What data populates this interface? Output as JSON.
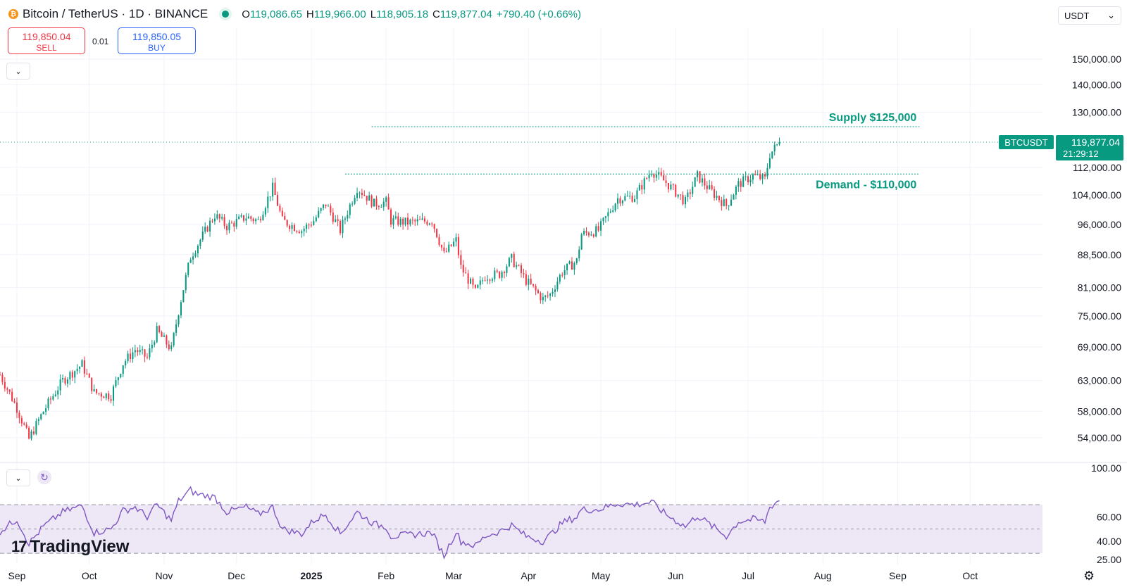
{
  "header": {
    "symbol_title": "Bitcoin / TetherUS · 1D · BINANCE",
    "coin_icon_glyph": "₿",
    "ohlc": {
      "o_label": "O",
      "o_value": "119,086.65",
      "h_label": "H",
      "h_value": "119,966.00",
      "l_label": "L",
      "l_value": "118,905.18",
      "c_label": "C",
      "c_value": "119,877.04",
      "change": "+790.40 (+0.66%)"
    }
  },
  "trade": {
    "sell_price": "119,850.04",
    "sell_label": "SELL",
    "spread": "0.01",
    "buy_price": "119,850.05",
    "buy_label": "BUY"
  },
  "currency_selector": {
    "value": "USDT"
  },
  "branding": {
    "name": "TradingView"
  },
  "colors": {
    "up": "#089981",
    "down": "#f23645",
    "rsi": "#7e57c2",
    "rsi_band": "#ede7f6",
    "grid": "#f0f3fa"
  },
  "chart_data": [
    {
      "type": "candlestick",
      "symbol": "BTCUSDT",
      "interval": "1D",
      "y_scale": "log",
      "ylim": [
        51000,
        160000
      ],
      "y_ticks": [
        {
          "value": 150000,
          "label": "150,000.00"
        },
        {
          "value": 140000,
          "label": "140,000.00"
        },
        {
          "value": 130000,
          "label": "130,000.00"
        },
        {
          "value": 112000,
          "label": "112,000.00"
        },
        {
          "value": 104000,
          "label": "104,000.00"
        },
        {
          "value": 96000,
          "label": "96,000.00"
        },
        {
          "value": 88500,
          "label": "88,500.00"
        },
        {
          "value": 81000,
          "label": "81,000.00"
        },
        {
          "value": 75000,
          "label": "75,000.00"
        },
        {
          "value": 69000,
          "label": "69,000.00"
        },
        {
          "value": 63000,
          "label": "63,000.00"
        },
        {
          "value": 58000,
          "label": "58,000.00"
        },
        {
          "value": 54000,
          "label": "54,000.00"
        }
      ],
      "x_range": [
        "2024-08-25",
        "2025-10-31"
      ],
      "x_ticks": [
        {
          "date": "2024-09-01",
          "label": "Sep"
        },
        {
          "date": "2024-10-01",
          "label": "Oct"
        },
        {
          "date": "2024-11-01",
          "label": "Nov"
        },
        {
          "date": "2024-12-01",
          "label": "Dec"
        },
        {
          "date": "2025-01-01",
          "label": "2025"
        },
        {
          "date": "2025-02-01",
          "label": "Feb"
        },
        {
          "date": "2025-03-01",
          "label": "Mar"
        },
        {
          "date": "2025-04-01",
          "label": "Apr"
        },
        {
          "date": "2025-05-01",
          "label": "May"
        },
        {
          "date": "2025-06-01",
          "label": "Jun"
        },
        {
          "date": "2025-07-01",
          "label": "Jul"
        },
        {
          "date": "2025-08-01",
          "label": "Aug"
        },
        {
          "date": "2025-09-01",
          "label": "Sep"
        },
        {
          "date": "2025-10-01",
          "label": "Oct"
        }
      ],
      "anchors": [
        [
          "2024-08-25",
          64000
        ],
        [
          "2024-09-01",
          58500
        ],
        [
          "2024-09-06",
          53800
        ],
        [
          "2024-09-12",
          58000
        ],
        [
          "2024-09-20",
          63000
        ],
        [
          "2024-09-28",
          65800
        ],
        [
          "2024-10-03",
          61000
        ],
        [
          "2024-10-10",
          60500
        ],
        [
          "2024-10-15",
          66000
        ],
        [
          "2024-10-20",
          68500
        ],
        [
          "2024-10-25",
          67000
        ],
        [
          "2024-10-29",
          72000
        ],
        [
          "2024-11-04",
          68500
        ],
        [
          "2024-11-07",
          76000
        ],
        [
          "2024-11-12",
          88000
        ],
        [
          "2024-11-14",
          90000
        ],
        [
          "2024-11-22",
          98500
        ],
        [
          "2024-11-27",
          95500
        ],
        [
          "2024-12-05",
          98000
        ],
        [
          "2024-12-10",
          97000
        ],
        [
          "2024-12-16",
          106000
        ],
        [
          "2024-12-20",
          97000
        ],
        [
          "2024-12-28",
          94500
        ],
        [
          "2025-01-02",
          97000
        ],
        [
          "2025-01-07",
          101500
        ],
        [
          "2025-01-13",
          94500
        ],
        [
          "2025-01-20",
          106000
        ],
        [
          "2025-01-27",
          101500
        ],
        [
          "2025-02-01",
          102000
        ],
        [
          "2025-02-03",
          97000
        ],
        [
          "2025-02-10",
          96500
        ],
        [
          "2025-02-20",
          97000
        ],
        [
          "2025-02-25",
          88500
        ],
        [
          "2025-03-02",
          92000
        ],
        [
          "2025-03-04",
          85500
        ],
        [
          "2025-03-10",
          80000
        ],
        [
          "2025-03-14",
          83500
        ],
        [
          "2025-03-20",
          84000
        ],
        [
          "2025-03-25",
          87500
        ],
        [
          "2025-03-31",
          82500
        ],
        [
          "2025-04-07",
          78500
        ],
        [
          "2025-04-10",
          79500
        ],
        [
          "2025-04-15",
          84500
        ],
        [
          "2025-04-21",
          87000
        ],
        [
          "2025-04-23",
          93500
        ],
        [
          "2025-04-30",
          94500
        ],
        [
          "2025-05-08",
          103000
        ],
        [
          "2025-05-15",
          103500
        ],
        [
          "2025-05-22",
          111000
        ],
        [
          "2025-05-28",
          107500
        ],
        [
          "2025-06-05",
          102000
        ],
        [
          "2025-06-10",
          109500
        ],
        [
          "2025-06-15",
          105500
        ],
        [
          "2025-06-22",
          101000
        ],
        [
          "2025-06-27",
          107000
        ],
        [
          "2025-07-03",
          109500
        ],
        [
          "2025-07-08",
          108500
        ],
        [
          "2025-07-10",
          116000
        ],
        [
          "2025-07-14",
          119877
        ]
      ],
      "annotations": [
        {
          "label": "Supply $125,000",
          "price": 125000,
          "from": "2025-01-26",
          "to": "2025-09-10",
          "color": "#089981"
        },
        {
          "label": "Demand - $110,000",
          "price": 110000,
          "from": "2025-01-15",
          "to": "2025-09-10",
          "color": "#089981"
        }
      ],
      "last_price": {
        "symbol_label": "BTCUSDT",
        "price_label": "119,877.04",
        "price": 119877.04,
        "countdown": "21:29:12"
      }
    },
    {
      "type": "line",
      "indicator": "RSI",
      "ylim": [
        22,
        103
      ],
      "y_ticks": [
        {
          "value": 100,
          "label": "100.00"
        },
        {
          "value": 60,
          "label": "60.00"
        },
        {
          "value": 40,
          "label": "40.00"
        },
        {
          "value": 25,
          "label": "25.00"
        }
      ],
      "levels": [
        70,
        50,
        30
      ],
      "anchors": [
        [
          "2024-08-25",
          48
        ],
        [
          "2024-09-01",
          58
        ],
        [
          "2024-09-06",
          38
        ],
        [
          "2024-09-12",
          52
        ],
        [
          "2024-09-20",
          64
        ],
        [
          "2024-09-28",
          69
        ],
        [
          "2024-10-03",
          47
        ],
        [
          "2024-10-10",
          50
        ],
        [
          "2024-10-15",
          65
        ],
        [
          "2024-10-20",
          68
        ],
        [
          "2024-10-25",
          60
        ],
        [
          "2024-10-29",
          70
        ],
        [
          "2024-11-04",
          57
        ],
        [
          "2024-11-07",
          73
        ],
        [
          "2024-11-12",
          82
        ],
        [
          "2024-11-14",
          79
        ],
        [
          "2024-11-22",
          76
        ],
        [
          "2024-11-27",
          64
        ],
        [
          "2024-12-05",
          68
        ],
        [
          "2024-12-10",
          62
        ],
        [
          "2024-12-16",
          68
        ],
        [
          "2024-12-20",
          50
        ],
        [
          "2024-12-28",
          46
        ],
        [
          "2025-01-02",
          57
        ],
        [
          "2025-01-07",
          62
        ],
        [
          "2025-01-13",
          46
        ],
        [
          "2025-01-20",
          64
        ],
        [
          "2025-01-27",
          54
        ],
        [
          "2025-02-01",
          52
        ],
        [
          "2025-02-03",
          44
        ],
        [
          "2025-02-10",
          45
        ],
        [
          "2025-02-20",
          47
        ],
        [
          "2025-02-25",
          28
        ],
        [
          "2025-03-02",
          48
        ],
        [
          "2025-03-04",
          40
        ],
        [
          "2025-03-10",
          36
        ],
        [
          "2025-03-14",
          44
        ],
        [
          "2025-03-20",
          48
        ],
        [
          "2025-03-25",
          53
        ],
        [
          "2025-03-31",
          44
        ],
        [
          "2025-04-07",
          40
        ],
        [
          "2025-04-10",
          45
        ],
        [
          "2025-04-15",
          55
        ],
        [
          "2025-04-21",
          60
        ],
        [
          "2025-04-23",
          66
        ],
        [
          "2025-04-30",
          66
        ],
        [
          "2025-05-08",
          71
        ],
        [
          "2025-05-15",
          70
        ],
        [
          "2025-05-22",
          72
        ],
        [
          "2025-05-28",
          62
        ],
        [
          "2025-06-05",
          52
        ],
        [
          "2025-06-10",
          61
        ],
        [
          "2025-06-15",
          54
        ],
        [
          "2025-06-22",
          44
        ],
        [
          "2025-06-27",
          56
        ],
        [
          "2025-07-03",
          58
        ],
        [
          "2025-07-08",
          56
        ],
        [
          "2025-07-10",
          68
        ],
        [
          "2025-07-14",
          74
        ]
      ]
    }
  ]
}
